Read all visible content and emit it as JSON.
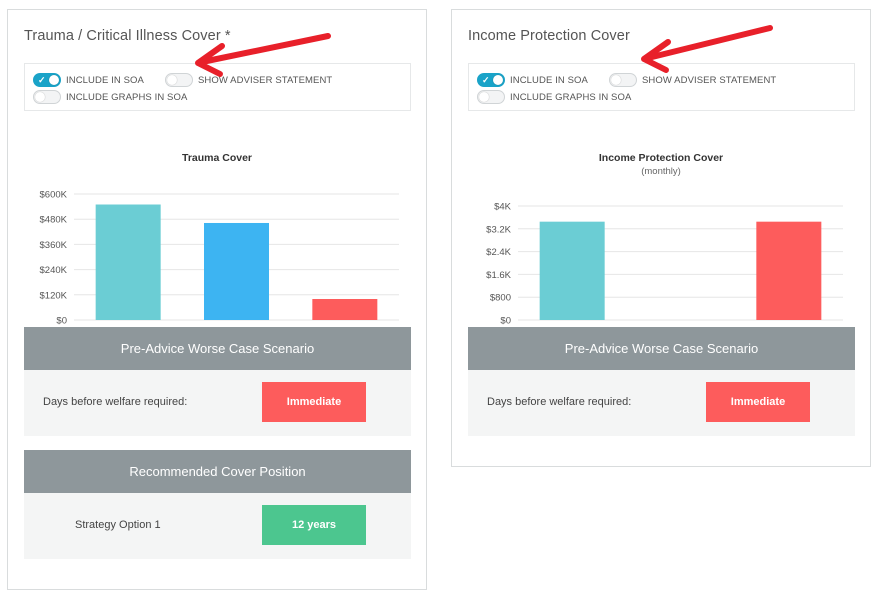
{
  "left_panel": {
    "title": "Trauma / Critical Illness Cover *",
    "toggles": [
      {
        "label": "INCLUDE IN SOA",
        "on": true
      },
      {
        "label": "SHOW ADVISER STATEMENT",
        "on": false
      },
      {
        "label": "INCLUDE GRAPHS IN SOA",
        "on": false
      }
    ],
    "pre_advice": {
      "header": "Pre-Advice Worse Case Scenario",
      "label": "Days before welfare required:",
      "value": "Immediate",
      "value_color": "#fd5c5c"
    },
    "recommended": {
      "header": "Recommended Cover Position",
      "label": "Strategy Option 1",
      "value": "12 years",
      "value_color": "#4cc68f"
    }
  },
  "right_panel": {
    "title": "Income Protection Cover",
    "toggles": [
      {
        "label": "INCLUDE IN SOA",
        "on": true
      },
      {
        "label": "SHOW ADVISER STATEMENT",
        "on": false
      },
      {
        "label": "INCLUDE GRAPHS IN SOA",
        "on": false
      }
    ],
    "pre_advice": {
      "header": "Pre-Advice Worse Case Scenario",
      "label": "Days before welfare required:",
      "value": "Immediate",
      "value_color": "#fd5c5c"
    }
  },
  "annotation": {
    "arrow_color": "#e8202a"
  },
  "chart_data": [
    {
      "type": "bar",
      "title": "Trauma Cover",
      "subtitle": "",
      "categories": [
        "",
        "",
        ""
      ],
      "values": [
        550000,
        462000,
        100000
      ],
      "colors": [
        "#6bcdd4",
        "#3db4f2",
        "#fd5c5c"
      ],
      "ylim": [
        0,
        600000
      ],
      "yticks": [
        0,
        120000,
        240000,
        360000,
        480000,
        600000
      ],
      "ytick_labels": [
        "$0",
        "$120K",
        "$240K",
        "$360K",
        "$480K",
        "$600K"
      ],
      "grid": true
    },
    {
      "type": "bar",
      "title": "Income Protection Cover",
      "subtitle": "(monthly)",
      "categories": [
        "",
        "",
        ""
      ],
      "values": [
        3450,
        0,
        3450
      ],
      "colors": [
        "#6bcdd4",
        "#3db4f2",
        "#fd5c5c"
      ],
      "ylim": [
        0,
        4000
      ],
      "yticks": [
        0,
        800,
        1600,
        2400,
        3200,
        4000
      ],
      "ytick_labels": [
        "$0",
        "$800",
        "$1.6K",
        "$2.4K",
        "$3.2K",
        "$4K"
      ],
      "grid": true
    }
  ]
}
